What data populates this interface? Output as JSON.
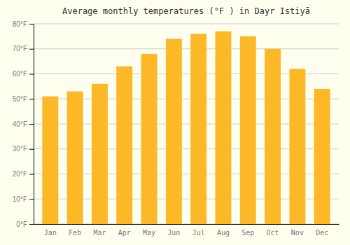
{
  "chart_data": {
    "type": "bar",
    "title": "Average monthly temperatures (°F ) in Dayr Istiyā",
    "categories": [
      "Jan",
      "Feb",
      "Mar",
      "Apr",
      "May",
      "Jun",
      "Jul",
      "Aug",
      "Sep",
      "Oct",
      "Nov",
      "Dec"
    ],
    "values": [
      51,
      53,
      56,
      63,
      68,
      74,
      76,
      77,
      75,
      70,
      62,
      54
    ],
    "color": "#FDB827",
    "ylim": [
      0,
      80
    ],
    "yticks": [
      {
        "value": 0,
        "label": "0°F"
      },
      {
        "value": 10,
        "label": "10°F"
      },
      {
        "value": 20,
        "label": "20°F"
      },
      {
        "value": 30,
        "label": "30°F"
      },
      {
        "value": 40,
        "label": "40°F"
      },
      {
        "value": 50,
        "label": "50°F"
      },
      {
        "value": 60,
        "label": "60°F"
      },
      {
        "value": 70,
        "label": "70°F"
      },
      {
        "value": 80,
        "label": "80°F"
      }
    ],
    "grid": true
  }
}
